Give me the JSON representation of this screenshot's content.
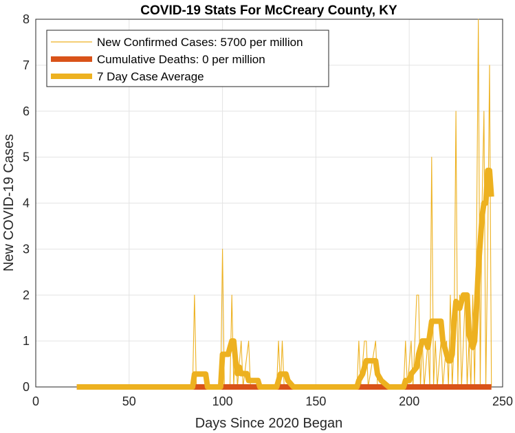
{
  "chart_data": {
    "type": "line",
    "title": "COVID-19 Stats For McCreary County, KY",
    "xlabel": "Days Since 2020 Began",
    "ylabel": "New COVID-19 Cases",
    "xlim": [
      0,
      250
    ],
    "ylim": [
      0,
      8
    ],
    "xticks": [
      0,
      50,
      100,
      150,
      200,
      250
    ],
    "yticks": [
      0,
      1,
      2,
      3,
      4,
      5,
      6,
      7,
      8
    ],
    "grid": true,
    "legend_position": "top-left",
    "series": [
      {
        "name": "New Confirmed Cases: 5700 per million",
        "color": "#EDB120",
        "style": "thin",
        "points": [
          [
            22,
            0
          ],
          [
            84,
            0
          ],
          [
            85,
            2
          ],
          [
            86,
            0
          ],
          [
            99,
            0
          ],
          [
            100,
            3
          ],
          [
            101,
            0
          ],
          [
            104,
            0
          ],
          [
            105,
            2
          ],
          [
            106,
            0
          ],
          [
            107,
            1
          ],
          [
            108,
            0
          ],
          [
            110,
            1
          ],
          [
            111,
            0
          ],
          [
            114,
            1
          ],
          [
            115,
            0
          ],
          [
            129,
            0
          ],
          [
            130,
            1
          ],
          [
            131,
            0
          ],
          [
            132,
            1
          ],
          [
            133,
            0
          ],
          [
            172,
            0
          ],
          [
            173,
            1
          ],
          [
            174,
            0
          ],
          [
            176,
            1
          ],
          [
            177,
            1
          ],
          [
            178,
            0
          ],
          [
            182,
            1
          ],
          [
            183,
            0
          ],
          [
            197,
            0
          ],
          [
            198,
            1
          ],
          [
            199,
            0
          ],
          [
            201,
            1
          ],
          [
            202,
            0
          ],
          [
            204,
            2
          ],
          [
            205,
            2
          ],
          [
            206,
            0
          ],
          [
            207,
            1
          ],
          [
            208,
            0
          ],
          [
            210,
            1
          ],
          [
            211,
            0
          ],
          [
            212,
            5
          ],
          [
            213,
            0
          ],
          [
            214,
            1
          ],
          [
            215,
            0
          ],
          [
            217,
            1
          ],
          [
            218,
            0
          ],
          [
            220,
            1
          ],
          [
            221,
            0
          ],
          [
            222,
            2
          ],
          [
            223,
            0
          ],
          [
            224,
            1
          ],
          [
            225,
            6
          ],
          [
            226,
            0
          ],
          [
            227,
            2
          ],
          [
            228,
            0
          ],
          [
            230,
            2
          ],
          [
            231,
            0
          ],
          [
            232,
            1
          ],
          [
            233,
            0
          ],
          [
            234,
            2
          ],
          [
            235,
            0
          ],
          [
            236,
            3
          ],
          [
            237,
            8
          ],
          [
            238,
            0
          ],
          [
            239,
            4
          ],
          [
            240,
            6
          ],
          [
            241,
            0
          ],
          [
            242,
            3
          ],
          [
            243,
            7
          ],
          [
            244,
            0
          ]
        ]
      },
      {
        "name": "Cumulative Deaths: 0 per million",
        "color": "#D95319",
        "style": "thick",
        "points": [
          [
            22,
            0
          ],
          [
            244,
            0
          ]
        ]
      },
      {
        "name": "7 Day Case Average",
        "color": "#EDB120",
        "style": "thick",
        "points": [
          [
            22,
            0
          ],
          [
            84,
            0
          ],
          [
            85,
            0.28
          ],
          [
            91,
            0.28
          ],
          [
            92,
            0
          ],
          [
            99,
            0
          ],
          [
            100,
            0.71
          ],
          [
            103,
            0.71
          ],
          [
            104,
            0.86
          ],
          [
            105,
            1.0
          ],
          [
            106,
            1.0
          ],
          [
            107,
            0.57
          ],
          [
            108,
            0.29
          ],
          [
            109,
            0.43
          ],
          [
            110,
            0.29
          ],
          [
            111,
            0.29
          ],
          [
            113,
            0.29
          ],
          [
            114,
            0.14
          ],
          [
            119,
            0.14
          ],
          [
            120,
            0
          ],
          [
            129,
            0
          ],
          [
            130,
            0.14
          ],
          [
            131,
            0.28
          ],
          [
            134,
            0.28
          ],
          [
            135,
            0.14
          ],
          [
            138,
            0
          ],
          [
            172,
            0
          ],
          [
            173,
            0.14
          ],
          [
            175,
            0.28
          ],
          [
            176,
            0.43
          ],
          [
            177,
            0.57
          ],
          [
            182,
            0.57
          ],
          [
            183,
            0.28
          ],
          [
            185,
            0.14
          ],
          [
            189,
            0
          ],
          [
            197,
            0
          ],
          [
            198,
            0.14
          ],
          [
            200,
            0.14
          ],
          [
            201,
            0.28
          ],
          [
            204,
            0.43
          ],
          [
            205,
            0.71
          ],
          [
            206,
            0.86
          ],
          [
            207,
            1.0
          ],
          [
            209,
            1.0
          ],
          [
            210,
            0.86
          ],
          [
            211,
            1.14
          ],
          [
            212,
            1.43
          ],
          [
            217,
            1.43
          ],
          [
            218,
            1.0
          ],
          [
            219,
            0.86
          ],
          [
            220,
            0.71
          ],
          [
            221,
            0.57
          ],
          [
            222,
            0.57
          ],
          [
            223,
            0.71
          ],
          [
            224,
            1.43
          ],
          [
            225,
            1.86
          ],
          [
            227,
            1.71
          ],
          [
            228,
            1.86
          ],
          [
            229,
            2.0
          ],
          [
            231,
            2.0
          ],
          [
            232,
            1.14
          ],
          [
            233,
            1.0
          ],
          [
            234,
            0.86
          ],
          [
            235,
            1.0
          ],
          [
            236,
            1.71
          ],
          [
            237,
            2.57
          ],
          [
            238,
            3.14
          ],
          [
            239,
            3.71
          ],
          [
            240,
            4.0
          ],
          [
            241,
            4.0
          ],
          [
            242,
            4.71
          ],
          [
            243,
            4.71
          ],
          [
            244,
            4.14
          ]
        ]
      }
    ]
  }
}
